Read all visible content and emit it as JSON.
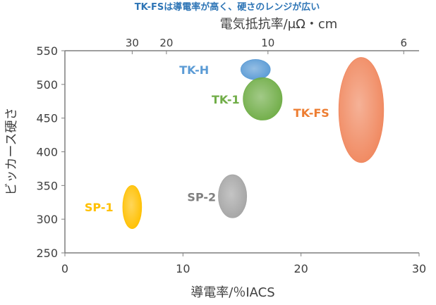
{
  "chart_data": {
    "type": "scatter",
    "title": "TK-FSは導電率が高く、硬さのレンジが広い",
    "xlabel": "導電率/％IACS",
    "ylabel": "ビッカース硬さ",
    "x2label": "電気抵抗率/μΩ・cm",
    "xlim": [
      0,
      30
    ],
    "ylim": [
      250,
      550
    ],
    "x_ticks": [
      0,
      10,
      20,
      30
    ],
    "y_ticks": [
      250,
      300,
      350,
      400,
      450,
      500,
      550
    ],
    "top_ticks": [
      {
        "label": "30",
        "conductivity": 5.7
      },
      {
        "label": "20",
        "conductivity": 8.6
      },
      {
        "label": "10",
        "conductivity": 17.2
      },
      {
        "label": "6",
        "conductivity": 28.7
      }
    ],
    "grid": false,
    "series": [
      {
        "name": "TK-H",
        "color": "#5b9bd5",
        "label_color": "#5b9bd5",
        "x": [
          14.9,
          17.4
        ],
        "y": [
          507,
          537
        ],
        "label_x": 12.2,
        "label_y": 522,
        "label_anchor": "end"
      },
      {
        "name": "TK-1",
        "color": "#70ad47",
        "label_color": "#70ad47",
        "x": [
          15.1,
          18.4
        ],
        "y": [
          447,
          510
        ],
        "label_x": 14.8,
        "label_y": 478,
        "label_anchor": "end"
      },
      {
        "name": "TK-FS",
        "color": "#f0885f",
        "label_color": "#ed7d31",
        "x": [
          23.2,
          27.0
        ],
        "y": [
          384,
          540
        ],
        "label_x": 22.4,
        "label_y": 458,
        "label_anchor": "end"
      },
      {
        "name": "SP-2",
        "color": "#a5a5a5",
        "label_color": "#7f7f7f",
        "x": [
          13.0,
          15.4
        ],
        "y": [
          302,
          366
        ],
        "label_x": 12.8,
        "label_y": 333,
        "label_anchor": "end"
      },
      {
        "name": "SP-1",
        "color": "#ffc000",
        "label_color": "#ffc000",
        "x": [
          4.9,
          6.5
        ],
        "y": [
          286,
          350
        ],
        "label_x": 4.1,
        "label_y": 318,
        "label_anchor": "end"
      }
    ]
  }
}
